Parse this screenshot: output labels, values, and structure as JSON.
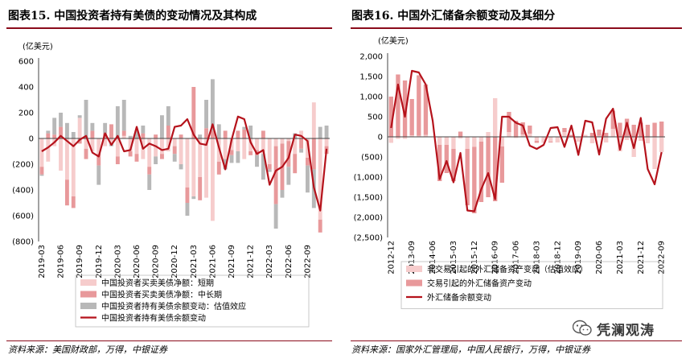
{
  "figures": [
    {
      "title": "图表15. 中国投资者持有美债的变动情况及其构成",
      "source": "资料来源：美国财政部，万得，中银证券"
    },
    {
      "title": "图表16. 中国外汇储备余额变动及其细分",
      "source": "资料来源：国家外汇管理局，中国人民银行，万得，中银证券"
    }
  ],
  "watermark": "凭澜观涛",
  "colors": {
    "accent": "#8b0b1b",
    "line": "#b5121b",
    "light_pink": "#f6cccc",
    "mid_pink": "#e8999b",
    "gray": "#b8b8b8"
  },
  "chart_data": [
    {
      "type": "bar",
      "stacked": true,
      "unit": "(亿美元)",
      "ylim": [
        -800,
        600
      ],
      "yticks": [
        "600",
        "400",
        "200",
        "0",
        "(200)",
        "(400)",
        "(600)",
        "(800)"
      ],
      "ytick_values": [
        600,
        400,
        200,
        0,
        -200,
        -400,
        -600,
        -800
      ],
      "x": [
        "2019-03",
        "2019-04",
        "2019-05",
        "2019-06",
        "2019-07",
        "2019-08",
        "2019-09",
        "2019-10",
        "2019-11",
        "2019-12",
        "2020-01",
        "2020-02",
        "2020-03",
        "2020-04",
        "2020-05",
        "2020-06",
        "2020-07",
        "2020-08",
        "2020-09",
        "2020-10",
        "2020-11",
        "2020-12",
        "2021-01",
        "2021-02",
        "2021-03",
        "2021-04",
        "2021-05",
        "2021-06",
        "2021-07",
        "2021-08",
        "2021-09",
        "2021-10",
        "2021-11",
        "2021-12",
        "2022-01",
        "2022-02",
        "2022-03",
        "2022-04",
        "2022-05",
        "2022-06",
        "2022-07",
        "2022-08",
        "2022-09",
        "2022-10",
        "2022-11",
        "2022-12"
      ],
      "x_tick_labels": [
        "2019-03",
        "2019-06",
        "2019-09",
        "2019-12",
        "2020-03",
        "2020-06",
        "2020-09",
        "2020-12",
        "2021-03",
        "2021-06",
        "2021-09",
        "2021-12",
        "2022-03",
        "2022-06",
        "2022-09"
      ],
      "legend_position": "bottom",
      "series": [
        {
          "name": "中国投资者买卖美债净额：短期",
          "kind": "bar",
          "values": [
            -220,
            -180,
            -60,
            -250,
            -320,
            -450,
            160,
            -80,
            -100,
            -120,
            -60,
            -40,
            -140,
            20,
            -100,
            -120,
            -160,
            -220,
            -140,
            -120,
            -100,
            -60,
            -200,
            -380,
            -450,
            -300,
            -460,
            -640,
            -180,
            -160,
            -90,
            -100,
            -160,
            -100,
            -90,
            -120,
            -200,
            -60,
            -40,
            -20,
            -120,
            60,
            -150,
            280,
            -630,
            -60
          ]
        },
        {
          "name": "中国投资者买卖美债净额：中长期",
          "kind": "bar",
          "values": [
            -60,
            40,
            30,
            90,
            -200,
            -90,
            -40,
            -80,
            60,
            -90,
            40,
            110,
            -60,
            40,
            -40,
            -60,
            40,
            -60,
            30,
            -40,
            100,
            -60,
            30,
            -120,
            400,
            -180,
            80,
            60,
            -100,
            60,
            -40,
            60,
            70,
            -30,
            -40,
            60,
            -40,
            -450,
            -360,
            -200,
            -150,
            -80,
            -60,
            -240,
            -100,
            -60
          ]
        },
        {
          "name": "中国投资者持有美债余额变动：估值效应",
          "kind": "bar",
          "values": [
            -10,
            20,
            130,
            110,
            120,
            50,
            20,
            300,
            60,
            -150,
            80,
            -20,
            250,
            240,
            20,
            60,
            60,
            -120,
            -60,
            180,
            150,
            -60,
            -40,
            -100,
            -20,
            30,
            220,
            400,
            110,
            -80,
            -60,
            -90,
            20,
            100,
            -90,
            -200,
            -20,
            -190,
            -60,
            -140,
            40,
            -30,
            -210,
            -300,
            90,
            100
          ]
        },
        {
          "name": "中国投资者持有美债余额变动",
          "kind": "line",
          "values": [
            -100,
            -70,
            -30,
            20,
            -20,
            -60,
            -10,
            20,
            -110,
            -140,
            40,
            -50,
            20,
            -100,
            -90,
            90,
            -80,
            -40,
            -60,
            -90,
            -80,
            90,
            100,
            150,
            30,
            -40,
            -50,
            110,
            -70,
            -240,
            -10,
            170,
            150,
            -30,
            -120,
            -90,
            -360,
            -250,
            -220,
            -150,
            30,
            20,
            -20,
            -380,
            -560,
            -80
          ]
        }
      ]
    },
    {
      "type": "bar",
      "stacked": true,
      "unit": "(亿美元)",
      "ylim": [
        -2500,
        2000
      ],
      "yticks": [
        "2,000",
        "1,500",
        "1,000",
        "500",
        "0",
        "(500)",
        "(1,000)",
        "(1,500)",
        "(2,000)",
        "(2,500)"
      ],
      "ytick_values": [
        2000,
        1500,
        1000,
        500,
        0,
        -500,
        -1000,
        -1500,
        -2000,
        -2500
      ],
      "x": [
        "2012-12",
        "2013-03",
        "2013-06",
        "2013-09",
        "2013-12",
        "2014-03",
        "2014-06",
        "2014-09",
        "2014-12",
        "2015-03",
        "2015-06",
        "2015-09",
        "2015-12",
        "2016-03",
        "2016-06",
        "2016-09",
        "2016-12",
        "2017-03",
        "2017-06",
        "2017-09",
        "2017-12",
        "2018-03",
        "2018-06",
        "2018-09",
        "2018-12",
        "2019-03",
        "2019-06",
        "2019-09",
        "2019-12",
        "2020-03",
        "2020-06",
        "2020-09",
        "2020-12",
        "2021-03",
        "2021-06",
        "2021-09",
        "2021-12",
        "2022-03",
        "2022-06",
        "2022-09"
      ],
      "x_tick_labels": [
        "2012-12",
        "2013-09",
        "2014-06",
        "2015-03",
        "2015-12",
        "2016-09",
        "2017-06",
        "2018-03",
        "2018-12",
        "2019-09",
        "2020-06",
        "2021-03",
        "2021-12",
        "2022-09"
      ],
      "legend_position": "bottom",
      "series": [
        {
          "name": "非交易引起的外汇储备资产变动（估值效应）",
          "kind": "bar",
          "values": [
            -150,
            -50,
            -50,
            40,
            30,
            50,
            0,
            -200,
            -200,
            -300,
            -40,
            -300,
            -250,
            -120,
            120,
            960,
            -240,
            120,
            -30,
            60,
            80,
            -100,
            -150,
            -120,
            -140,
            120,
            -20,
            -120,
            50,
            -160,
            30,
            -140,
            200,
            -360,
            -80,
            -500,
            -100,
            -160,
            -800,
            -380
          ]
        },
        {
          "name": "交易引起的外汇储备资产变动",
          "kind": "bar",
          "values": [
            1000,
            1550,
            1400,
            900,
            1500,
            1250,
            0,
            -900,
            -700,
            -800,
            130,
            -1400,
            -1650,
            -1500,
            -1500,
            -1600,
            -900,
            500,
            400,
            300,
            200,
            -50,
            10,
            -20,
            0,
            100,
            50,
            0,
            0,
            100,
            150,
            100,
            450,
            350,
            450,
            300,
            350,
            300,
            350,
            380
          ]
        },
        {
          "name": "外汇储备余额变动",
          "kind": "line",
          "values": [
            220,
            1300,
            500,
            1640,
            1600,
            1300,
            400,
            -1050,
            -600,
            -1130,
            -400,
            -1830,
            -1850,
            -1300,
            -900,
            -1550,
            500,
            500,
            350,
            280,
            -220,
            -300,
            -200,
            220,
            240,
            -250,
            280,
            -450,
            400,
            360,
            -440,
            450,
            700,
            -320,
            350,
            -280,
            470,
            -800,
            -1180,
            -380
          ]
        }
      ]
    }
  ]
}
